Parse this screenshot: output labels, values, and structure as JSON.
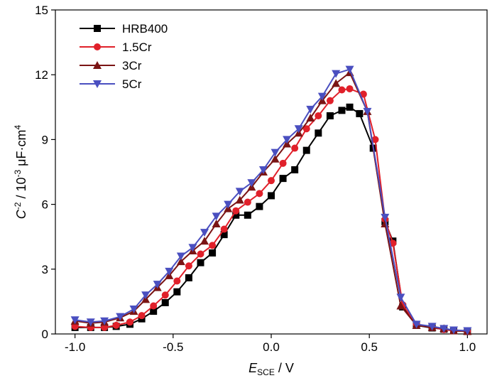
{
  "chart_data": {
    "type": "line",
    "title": "",
    "xlabel": {
      "symbol": "E",
      "subscript": "SCE",
      "unit": " / V"
    },
    "ylabel": {
      "symbol": "C",
      "superscript": "-2",
      "mid": " / 10",
      "exp": "-3",
      "unit": " μF·cm",
      "unit_exp": "4"
    },
    "xlim": [
      -1.1,
      1.1
    ],
    "ylim": [
      0,
      15
    ],
    "xticks": [
      -1.0,
      -0.5,
      0.0,
      0.5,
      1.0
    ],
    "xtick_labels": [
      "-1.0",
      "-0.5",
      "0.0",
      "0.5",
      "1.0"
    ],
    "yticks": [
      0,
      3,
      6,
      9,
      12,
      15
    ],
    "ytick_labels": [
      "0",
      "3",
      "6",
      "9",
      "12",
      "15"
    ],
    "grid": false,
    "legend_position": "top-left",
    "series": [
      {
        "name": "HRB400",
        "color": "#000000",
        "marker": "square",
        "x": [
          -1.0,
          -0.92,
          -0.85,
          -0.79,
          -0.72,
          -0.66,
          -0.6,
          -0.54,
          -0.48,
          -0.42,
          -0.36,
          -0.3,
          -0.24,
          -0.18,
          -0.12,
          -0.06,
          0.0,
          0.06,
          0.12,
          0.18,
          0.24,
          0.3,
          0.36,
          0.4,
          0.45,
          0.52,
          0.58,
          0.62,
          0.67,
          0.74,
          0.82,
          0.88,
          0.93,
          1.0
        ],
        "y": [
          0.3,
          0.3,
          0.3,
          0.35,
          0.45,
          0.7,
          1.05,
          1.45,
          1.95,
          2.6,
          3.3,
          3.75,
          4.6,
          5.5,
          5.5,
          5.9,
          6.4,
          7.2,
          7.6,
          8.5,
          9.3,
          10.1,
          10.35,
          10.5,
          10.2,
          8.6,
          5.2,
          4.3,
          1.25,
          0.4,
          0.28,
          0.22,
          0.15,
          0.12
        ]
      },
      {
        "name": "1.5Cr",
        "color": "#e0202a",
        "marker": "circle",
        "x": [
          -1.0,
          -0.92,
          -0.85,
          -0.79,
          -0.72,
          -0.66,
          -0.6,
          -0.54,
          -0.48,
          -0.42,
          -0.36,
          -0.3,
          -0.24,
          -0.18,
          -0.12,
          -0.06,
          0.0,
          0.06,
          0.12,
          0.18,
          0.24,
          0.3,
          0.36,
          0.4,
          0.47,
          0.53,
          0.58,
          0.62,
          0.67,
          0.74,
          0.82,
          0.88,
          0.93,
          1.0
        ],
        "y": [
          0.35,
          0.3,
          0.3,
          0.4,
          0.55,
          0.85,
          1.3,
          1.8,
          2.45,
          3.15,
          3.7,
          4.1,
          4.85,
          5.7,
          6.1,
          6.5,
          7.1,
          7.9,
          8.6,
          9.5,
          10.1,
          10.8,
          11.3,
          11.35,
          11.1,
          9.0,
          5.3,
          4.2,
          1.35,
          0.45,
          0.3,
          0.2,
          0.15,
          0.12
        ]
      },
      {
        "name": "3Cr",
        "color": "#7a1414",
        "marker": "triangle-up",
        "x": [
          -1.0,
          -0.92,
          -0.85,
          -0.77,
          -0.7,
          -0.64,
          -0.58,
          -0.52,
          -0.46,
          -0.4,
          -0.34,
          -0.28,
          -0.22,
          -0.16,
          -0.1,
          -0.04,
          0.02,
          0.08,
          0.14,
          0.2,
          0.26,
          0.33,
          0.4,
          0.49,
          0.58,
          0.66,
          0.74,
          0.82,
          0.88,
          0.93,
          1.0
        ],
        "y": [
          0.6,
          0.5,
          0.55,
          0.75,
          1.05,
          1.6,
          2.15,
          2.7,
          3.35,
          3.85,
          4.3,
          5.1,
          5.8,
          6.2,
          6.8,
          7.5,
          8.1,
          8.8,
          9.3,
          10.0,
          10.8,
          11.6,
          12.1,
          10.3,
          5.1,
          1.3,
          0.4,
          0.3,
          0.25,
          0.15,
          0.12
        ]
      },
      {
        "name": "5Cr",
        "color": "#4a4fc0",
        "marker": "triangle-down",
        "x": [
          -1.0,
          -0.92,
          -0.85,
          -0.77,
          -0.7,
          -0.64,
          -0.58,
          -0.52,
          -0.46,
          -0.4,
          -0.34,
          -0.28,
          -0.22,
          -0.16,
          -0.1,
          -0.04,
          0.02,
          0.08,
          0.14,
          0.2,
          0.26,
          0.33,
          0.4,
          0.49,
          0.58,
          0.66,
          0.74,
          0.82,
          0.88,
          0.93,
          1.0
        ],
        "y": [
          0.65,
          0.55,
          0.6,
          0.8,
          1.15,
          1.8,
          2.3,
          2.9,
          3.6,
          4.0,
          4.7,
          5.45,
          6.0,
          6.6,
          7.0,
          7.6,
          8.4,
          9.0,
          9.5,
          10.4,
          11.0,
          12.05,
          12.25,
          10.3,
          5.4,
          1.7,
          0.45,
          0.35,
          0.25,
          0.18,
          0.15
        ]
      }
    ]
  }
}
